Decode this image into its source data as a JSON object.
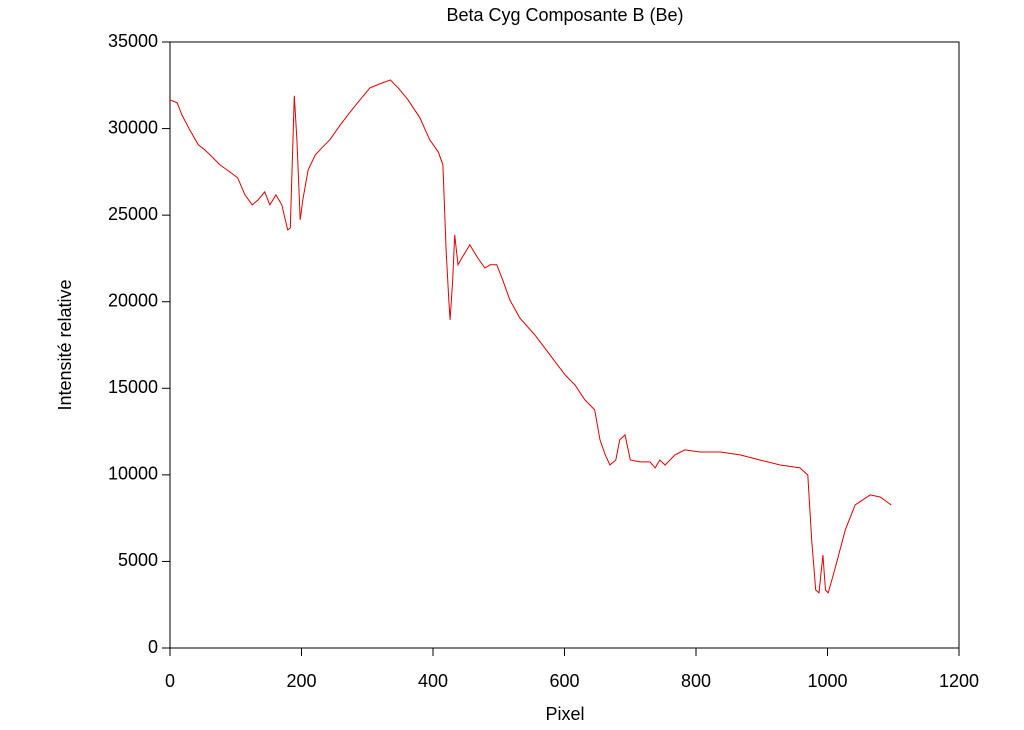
{
  "chart_data": {
    "type": "line",
    "title": "Beta Cyg Composante B (Be)",
    "xlabel": "Pixel",
    "ylabel": "Intensité relative",
    "xlim": [
      0,
      1200
    ],
    "xticks": [
      0,
      200,
      400,
      600,
      800,
      1000,
      1200
    ],
    "ylim": [
      0,
      35000
    ],
    "yticks": [
      0,
      5000,
      10000,
      15000,
      20000,
      25000,
      30000,
      35000
    ],
    "series": [
      {
        "color": "#e00000",
        "x": [
          0,
          11,
          18,
          30,
          43,
          53,
          61,
          76,
          91,
          103,
          114,
          125,
          134,
          144,
          152,
          161,
          170,
          179,
          183,
          189,
          193,
          198,
          202,
          210,
          221,
          231,
          243,
          259,
          274,
          289,
          304,
          319,
          335,
          347,
          362,
          380,
          395,
          408,
          415,
          420,
          424,
          426,
          430,
          433,
          438,
          444,
          456,
          468,
          479,
          487,
          497,
          506,
          517,
          532,
          555,
          578,
          601,
          616,
          631,
          646,
          654,
          662,
          669,
          678,
          684,
          692,
          700,
          715,
          730,
          738,
          745,
          753,
          768,
          783,
          806,
          837,
          867,
          897,
          928,
          958,
          970,
          976,
          982,
          987,
          993,
          997,
          1001,
          1011,
          1027,
          1042,
          1065,
          1080,
          1097
        ],
        "values": [
          31650,
          31490,
          30800,
          29930,
          29060,
          28770,
          28480,
          27900,
          27500,
          27150,
          26170,
          25590,
          25880,
          26340,
          25590,
          26170,
          25590,
          24150,
          24260,
          31890,
          29350,
          24730,
          25880,
          27610,
          28480,
          28890,
          29350,
          30210,
          30960,
          31660,
          32350,
          32580,
          32810,
          32350,
          31660,
          30620,
          29350,
          28650,
          27900,
          22990,
          20100,
          18950,
          21260,
          23860,
          22130,
          22530,
          23280,
          22530,
          21950,
          22130,
          22130,
          21260,
          20100,
          19060,
          18080,
          16930,
          15770,
          15190,
          14330,
          13750,
          12020,
          11150,
          10570,
          10860,
          12020,
          12310,
          10860,
          10750,
          10750,
          10400,
          10860,
          10570,
          11150,
          11440,
          11320,
          11320,
          11150,
          10860,
          10570,
          10400,
          9990,
          6240,
          3350,
          3180,
          5370,
          3350,
          3180,
          4510,
          6820,
          8260,
          8840,
          8720,
          8260
        ]
      }
    ]
  }
}
